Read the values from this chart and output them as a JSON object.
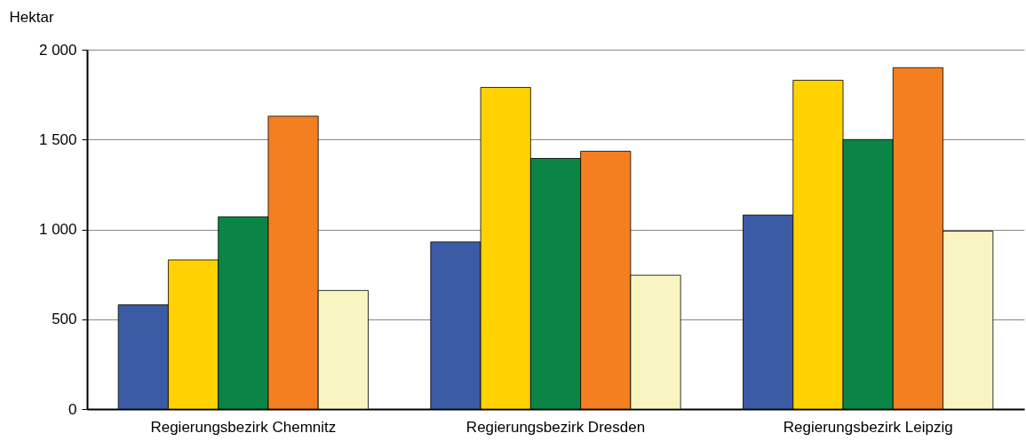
{
  "chart_data": {
    "type": "bar",
    "ylabel": "Hektar",
    "categories": [
      "Regierungsbezirk Chemnitz",
      "Regierungsbezirk Dresden",
      "Regierungsbezirk Leipzig"
    ],
    "series": [
      {
        "color": "#3b5ba5",
        "values": [
          580,
          930,
          1080
        ]
      },
      {
        "color": "#ffd200",
        "values": [
          830,
          1790,
          1830
        ]
      },
      {
        "color": "#0a8545",
        "values": [
          1070,
          1395,
          1500
        ]
      },
      {
        "color": "#f47f20",
        "values": [
          1630,
          1435,
          1900
        ]
      },
      {
        "color": "#f8f5c2",
        "values": [
          660,
          745,
          990
        ]
      }
    ],
    "ylim": [
      0,
      2000
    ],
    "yticks": [
      0,
      500,
      {
        "value": 1000,
        "label": "1 000"
      },
      {
        "value": 1500,
        "label": "1 500"
      },
      {
        "value": 2000,
        "label": "2 000"
      }
    ],
    "grid": "y",
    "legend": false
  }
}
